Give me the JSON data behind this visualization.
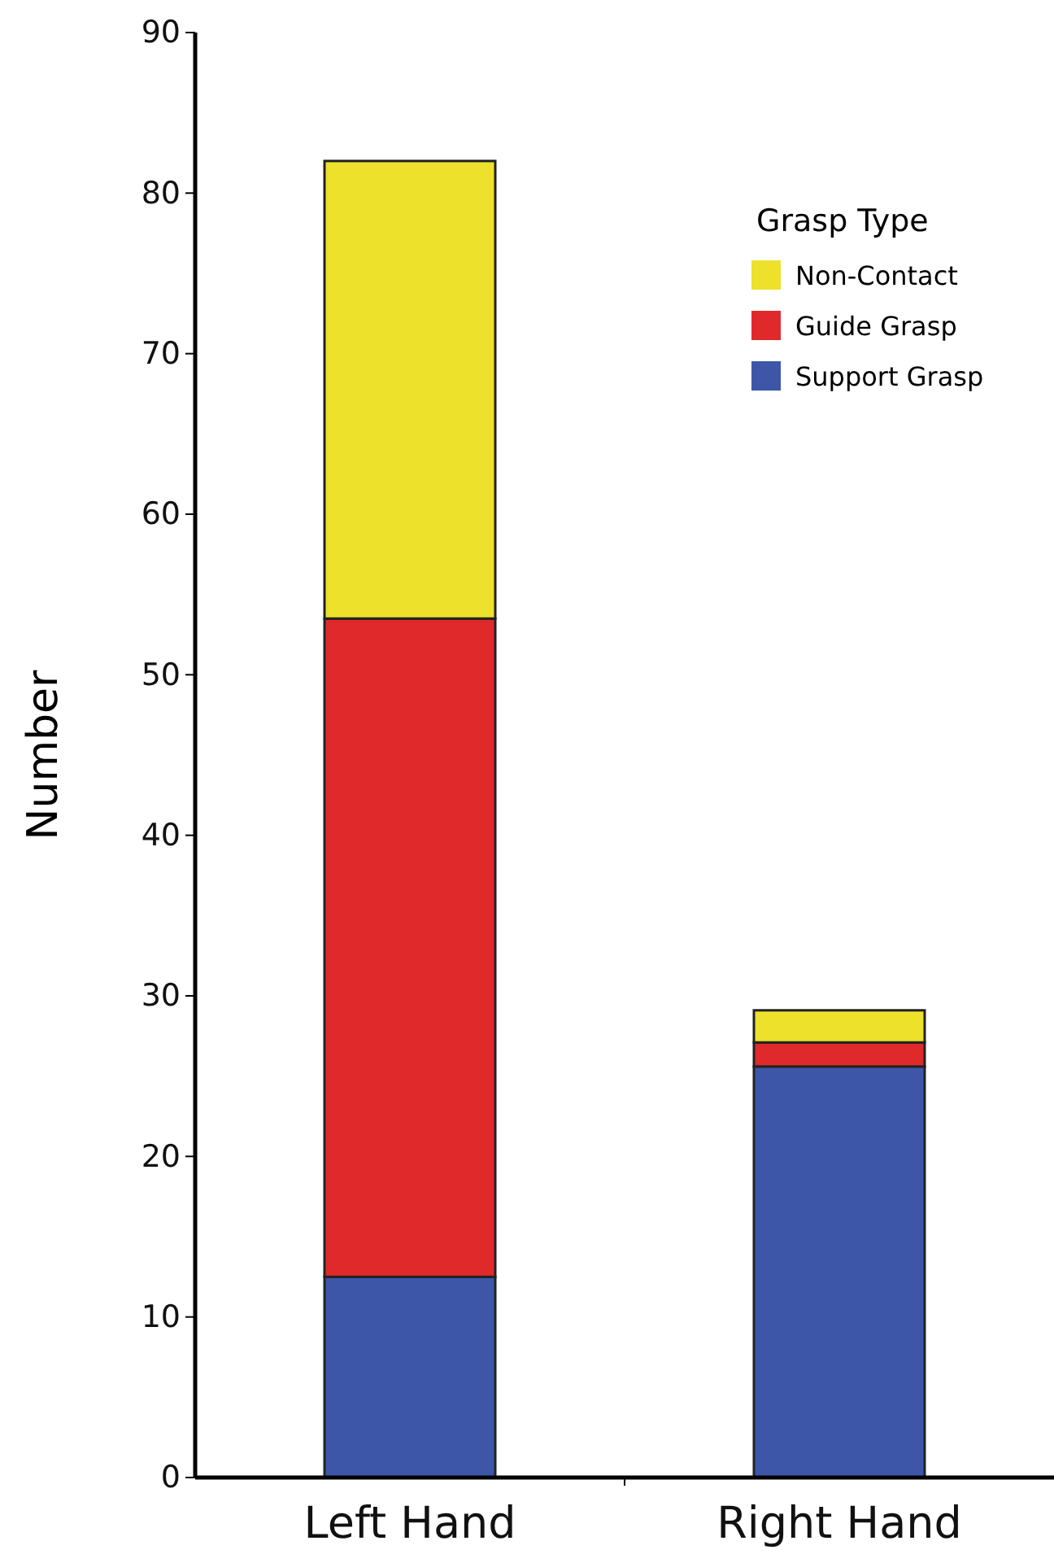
{
  "chart_data": {
    "type": "bar",
    "stacked": true,
    "ylabel": "Number",
    "legend_title": "Grasp Type",
    "legend": "top right",
    "categories": [
      "Left Hand",
      "Right Hand"
    ],
    "series": [
      {
        "name": "Support Grasp",
        "color": "#3d56a8",
        "values": [
          12.5,
          25.6
        ]
      },
      {
        "name": "Guide Grasp",
        "color": "#e0292a",
        "values": [
          41,
          1.5
        ]
      },
      {
        "name": "Non-Contact",
        "color": "#ede12b",
        "values": [
          28.5,
          2
        ]
      }
    ],
    "ylim": [
      0,
      90
    ],
    "yticks": [
      0,
      10,
      20,
      30,
      40,
      50,
      60,
      70,
      80,
      90
    ],
    "grid": false
  }
}
